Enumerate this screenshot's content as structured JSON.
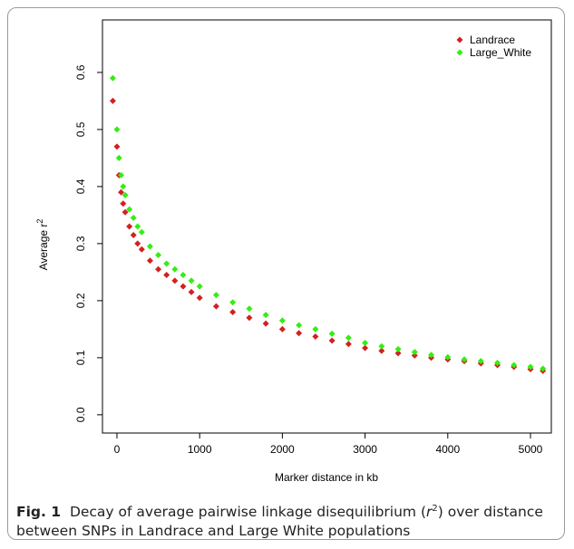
{
  "chart_data": {
    "type": "scatter",
    "y_label": "Average r",
    "y_label_sup": "2",
    "x_label": "Marker distance in kb",
    "caption_label": "Fig. 1",
    "caption_text_1": "Decay of average pairwise linkage disequilibrium (",
    "caption_italic": "r",
    "caption_sup": "2",
    "caption_text_2": ") over distance between SNPs in Landrace and Large White populations",
    "xlim": [
      -175,
      5252
    ],
    "ylim": [
      -0.032,
      0.692
    ],
    "xticks": [
      0,
      1000,
      2000,
      3000,
      4000,
      5000
    ],
    "yticks": [
      {
        "value": 0,
        "label": "0.0"
      },
      0.1,
      0.2,
      0.3,
      0.4,
      0.5,
      0.6
    ],
    "legend": "top-right",
    "x": [
      -50,
      0,
      25,
      50,
      75,
      100,
      150,
      200,
      250,
      300,
      400,
      500,
      600,
      700,
      800,
      900,
      1000,
      1200,
      1400,
      1600,
      1800,
      2000,
      2200,
      2400,
      2600,
      2800,
      3000,
      3200,
      3400,
      3600,
      3800,
      4000,
      4200,
      4400,
      4600,
      4800,
      5000,
      5150
    ],
    "series": [
      {
        "name": "Landrace",
        "color": "#d42020",
        "values": [
          0.55,
          0.47,
          0.42,
          0.39,
          0.37,
          0.355,
          0.33,
          0.315,
          0.3,
          0.29,
          0.27,
          0.255,
          0.245,
          0.235,
          0.225,
          0.215,
          0.205,
          0.19,
          0.18,
          0.17,
          0.16,
          0.15,
          0.143,
          0.137,
          0.13,
          0.124,
          0.117,
          0.112,
          0.108,
          0.104,
          0.1,
          0.097,
          0.094,
          0.09,
          0.087,
          0.084,
          0.08,
          0.077
        ]
      },
      {
        "name": "Large_White",
        "color": "#33ee11",
        "values": [
          0.59,
          0.5,
          0.45,
          0.42,
          0.4,
          0.385,
          0.36,
          0.345,
          0.33,
          0.32,
          0.295,
          0.28,
          0.265,
          0.255,
          0.245,
          0.235,
          0.225,
          0.21,
          0.197,
          0.186,
          0.175,
          0.165,
          0.157,
          0.15,
          0.142,
          0.135,
          0.126,
          0.12,
          0.115,
          0.11,
          0.105,
          0.101,
          0.097,
          0.094,
          0.091,
          0.087,
          0.084,
          0.081
        ]
      }
    ]
  }
}
